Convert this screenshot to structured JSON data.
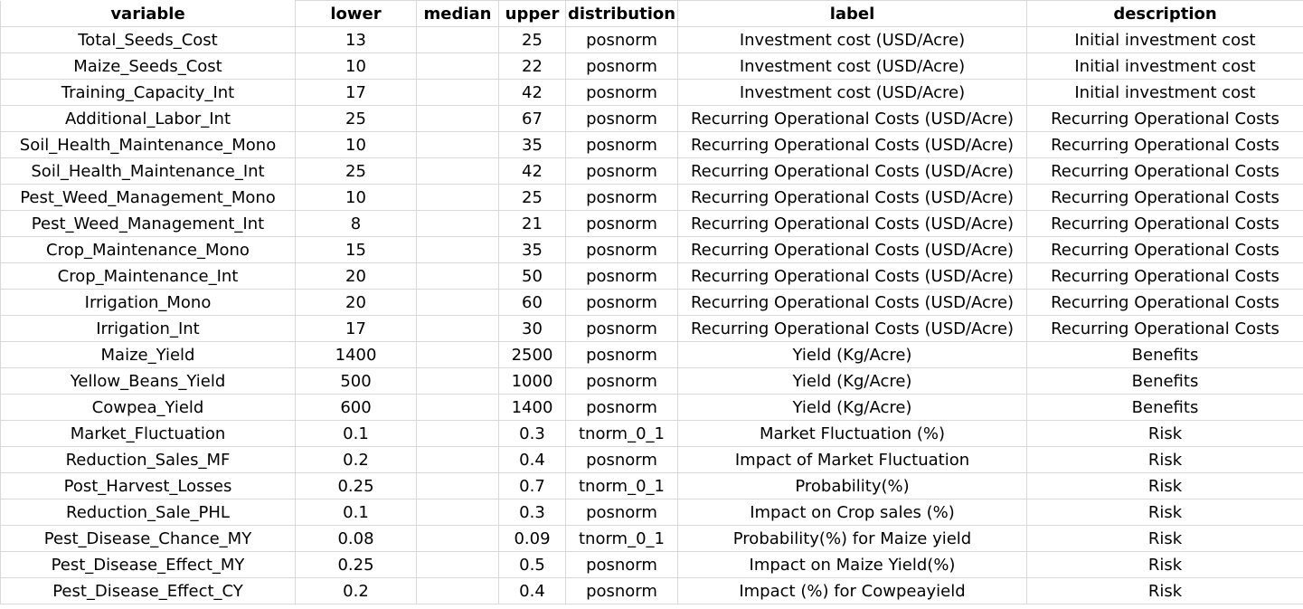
{
  "sheet": {
    "columns": [
      "variable",
      "lower",
      "median",
      "upper",
      "distribution",
      "label",
      "description"
    ],
    "rows": [
      [
        "Total_Seeds_Cost",
        "13",
        "",
        "25",
        "posnorm",
        "Investment cost (USD/Acre)",
        "Initial investment cost"
      ],
      [
        "Maize_Seeds_Cost",
        "10",
        "",
        "22",
        "posnorm",
        "Investment cost (USD/Acre)",
        "Initial investment cost"
      ],
      [
        "Training_Capacity_Int",
        "17",
        "",
        "42",
        "posnorm",
        "Investment cost (USD/Acre)",
        "Initial investment cost"
      ],
      [
        "Additional_Labor_Int",
        "25",
        "",
        "67",
        "posnorm",
        "Recurring Operational Costs (USD/Acre)",
        "Recurring Operational Costs"
      ],
      [
        "Soil_Health_Maintenance_Mono",
        "10",
        "",
        "35",
        "posnorm",
        "Recurring Operational Costs (USD/Acre)",
        "Recurring Operational Costs"
      ],
      [
        "Soil_Health_Maintenance_Int",
        "25",
        "",
        "42",
        "posnorm",
        "Recurring Operational Costs (USD/Acre)",
        "Recurring Operational Costs"
      ],
      [
        "Pest_Weed_Management_Mono",
        "10",
        "",
        "25",
        "posnorm",
        "Recurring Operational Costs (USD/Acre)",
        "Recurring Operational Costs"
      ],
      [
        "Pest_Weed_Management_Int",
        "8",
        "",
        "21",
        "posnorm",
        "Recurring Operational Costs (USD/Acre)",
        "Recurring Operational Costs"
      ],
      [
        "Crop_Maintenance_Mono",
        "15",
        "",
        "35",
        "posnorm",
        "Recurring Operational Costs (USD/Acre)",
        "Recurring Operational Costs"
      ],
      [
        "Crop_Maintenance_Int",
        "20",
        "",
        "50",
        "posnorm",
        "Recurring Operational Costs (USD/Acre)",
        "Recurring Operational Costs"
      ],
      [
        "Irrigation_Mono",
        "20",
        "",
        "60",
        "posnorm",
        "Recurring Operational Costs (USD/Acre)",
        "Recurring Operational Costs"
      ],
      [
        "Irrigation_Int",
        "17",
        "",
        "30",
        "posnorm",
        "Recurring Operational Costs (USD/Acre)",
        "Recurring Operational Costs"
      ],
      [
        "Maize_Yield",
        "1400",
        "",
        "2500",
        "posnorm",
        "Yield (Kg/Acre)",
        "Benefits"
      ],
      [
        "Yellow_Beans_Yield",
        "500",
        "",
        "1000",
        "posnorm",
        "Yield (Kg/Acre)",
        "Benefits"
      ],
      [
        "Cowpea_Yield",
        "600",
        "",
        "1400",
        "posnorm",
        "Yield (Kg/Acre)",
        "Benefits"
      ],
      [
        "Market_Fluctuation",
        "0.1",
        "",
        "0.3",
        "tnorm_0_1",
        "Market Fluctuation (%)",
        "Risk"
      ],
      [
        "Reduction_Sales_MF",
        "0.2",
        "",
        "0.4",
        "posnorm",
        "Impact of Market Fluctuation",
        "Risk"
      ],
      [
        "Post_Harvest_Losses",
        "0.25",
        "",
        "0.7",
        "tnorm_0_1",
        "Probability(%)",
        "Risk"
      ],
      [
        "Reduction_Sale_PHL",
        "0.1",
        "",
        "0.3",
        "posnorm",
        "Impact on Crop sales (%)",
        "Risk"
      ],
      [
        "Pest_Disease_Chance_MY",
        "0.08",
        "",
        "0.09",
        "tnorm_0_1",
        "Probability(%) for Maize yield",
        "Risk"
      ],
      [
        "Pest_Disease_Effect_MY",
        "0.25",
        "",
        "0.5",
        "posnorm",
        "Impact on Maize Yield(%)",
        "Risk"
      ],
      [
        "Pest_Disease_Effect_CY",
        "0.2",
        "",
        "0.4",
        "posnorm",
        "Impact (%) for  Cowpeayield",
        "Risk"
      ]
    ]
  }
}
